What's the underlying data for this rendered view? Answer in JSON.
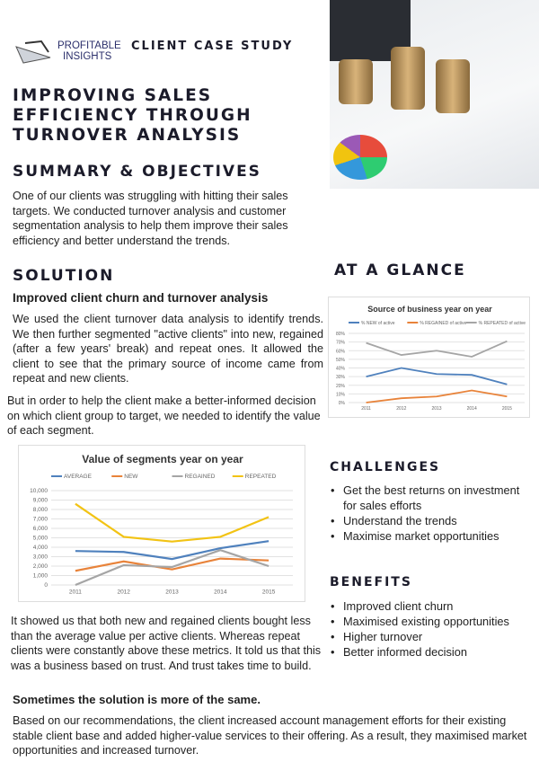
{
  "header": {
    "logo_line1": "PROFITABLE",
    "logo_line2": "INSIGHTS",
    "label": "CLIENT CASE STUDY"
  },
  "title": [
    "IMPROVING SALES",
    "EFFICIENCY THROUGH",
    "TURNOVER ANALYSIS"
  ],
  "summary": {
    "heading": "SUMMARY & OBJECTIVES",
    "text": "One of our clients was struggling with hitting their sales targets. We conducted turnover analysis and customer segmentation analysis to help them improve their sales efficiency and better understand the trends."
  },
  "solution": {
    "heading": "SOLUTION",
    "subheading": "Improved client churn and turnover analysis",
    "p1": "We used the client turnover data analysis to identify trends. We then further segmented \"active clients\" into new, regained (after a few years' break) and repeat ones. It allowed the client to see that the primary source of income came from repeat and new clients.",
    "p2": "But in order to help the client make a better-informed decision on which client group to target, we needed to identify the value of each segment.",
    "p3": "It showed us that both new and regained clients bought less than the average value per active clients. Whereas repeat clients were constantly above these metrics.  It told us that this was a business based on trust. And trust takes time to build.",
    "closing_heading": "Sometimes the solution is more of the same.",
    "closing_text": "Based on our recommendations, the client increased account management efforts for their existing stable client base and added higher-value services to their offering. As a result, they maximised market opportunities and increased turnover."
  },
  "glance": {
    "heading": "AT A GLANCE"
  },
  "challenges": {
    "heading": "CHALLENGES",
    "items": [
      "Get the best returns on investment for sales efforts",
      "Understand the trends",
      "Maximise market opportunities"
    ]
  },
  "benefits": {
    "heading": "BENEFITS",
    "items": [
      "Improved client churn",
      "Maximised existing opportunities",
      "Higher turnover",
      "Better informed decision"
    ]
  },
  "chart_data": [
    {
      "type": "line",
      "title": "Source of business year on year",
      "categories": [
        "2011",
        "2012",
        "2013",
        "2014",
        "2015"
      ],
      "ylim": [
        0,
        80
      ],
      "yticks": [
        "0%",
        "10%",
        "20%",
        "30%",
        "40%",
        "50%",
        "60%",
        "70%",
        "80%"
      ],
      "grid": true,
      "legend": "top",
      "series": [
        {
          "name": "% NEW of active",
          "color": "#4f81bd",
          "values": [
            30,
            40,
            33,
            32,
            21
          ]
        },
        {
          "name": "% REGAINED of active",
          "color": "#e8833a",
          "values": [
            0,
            5,
            7,
            14,
            7
          ]
        },
        {
          "name": "% REPEATED of active",
          "color": "#a5a5a5",
          "values": [
            69,
            55,
            60,
            53,
            71
          ]
        }
      ]
    },
    {
      "type": "line",
      "title": "Value of segments year on year",
      "categories": [
        "2011",
        "2012",
        "2013",
        "2014",
        "2015"
      ],
      "ylim": [
        0,
        10000
      ],
      "yticks": [
        "0",
        "1,000",
        "2,000",
        "3,000",
        "4,000",
        "5,000",
        "6,000",
        "7,000",
        "8,000",
        "9,000",
        "10,000"
      ],
      "grid": true,
      "legend": "top",
      "series": [
        {
          "name": "AVERAGE",
          "color": "#4f81bd",
          "values": [
            3600,
            3500,
            2750,
            3900,
            4650
          ]
        },
        {
          "name": "NEW",
          "color": "#e8833a",
          "values": [
            1500,
            2500,
            1650,
            2800,
            2600
          ]
        },
        {
          "name": "REGAINED",
          "color": "#a5a5a5",
          "values": [
            0,
            2100,
            1900,
            3700,
            2000
          ]
        },
        {
          "name": "REPEATED",
          "color": "#f2c314",
          "values": [
            8600,
            5100,
            4600,
            5100,
            7200
          ]
        }
      ]
    }
  ]
}
